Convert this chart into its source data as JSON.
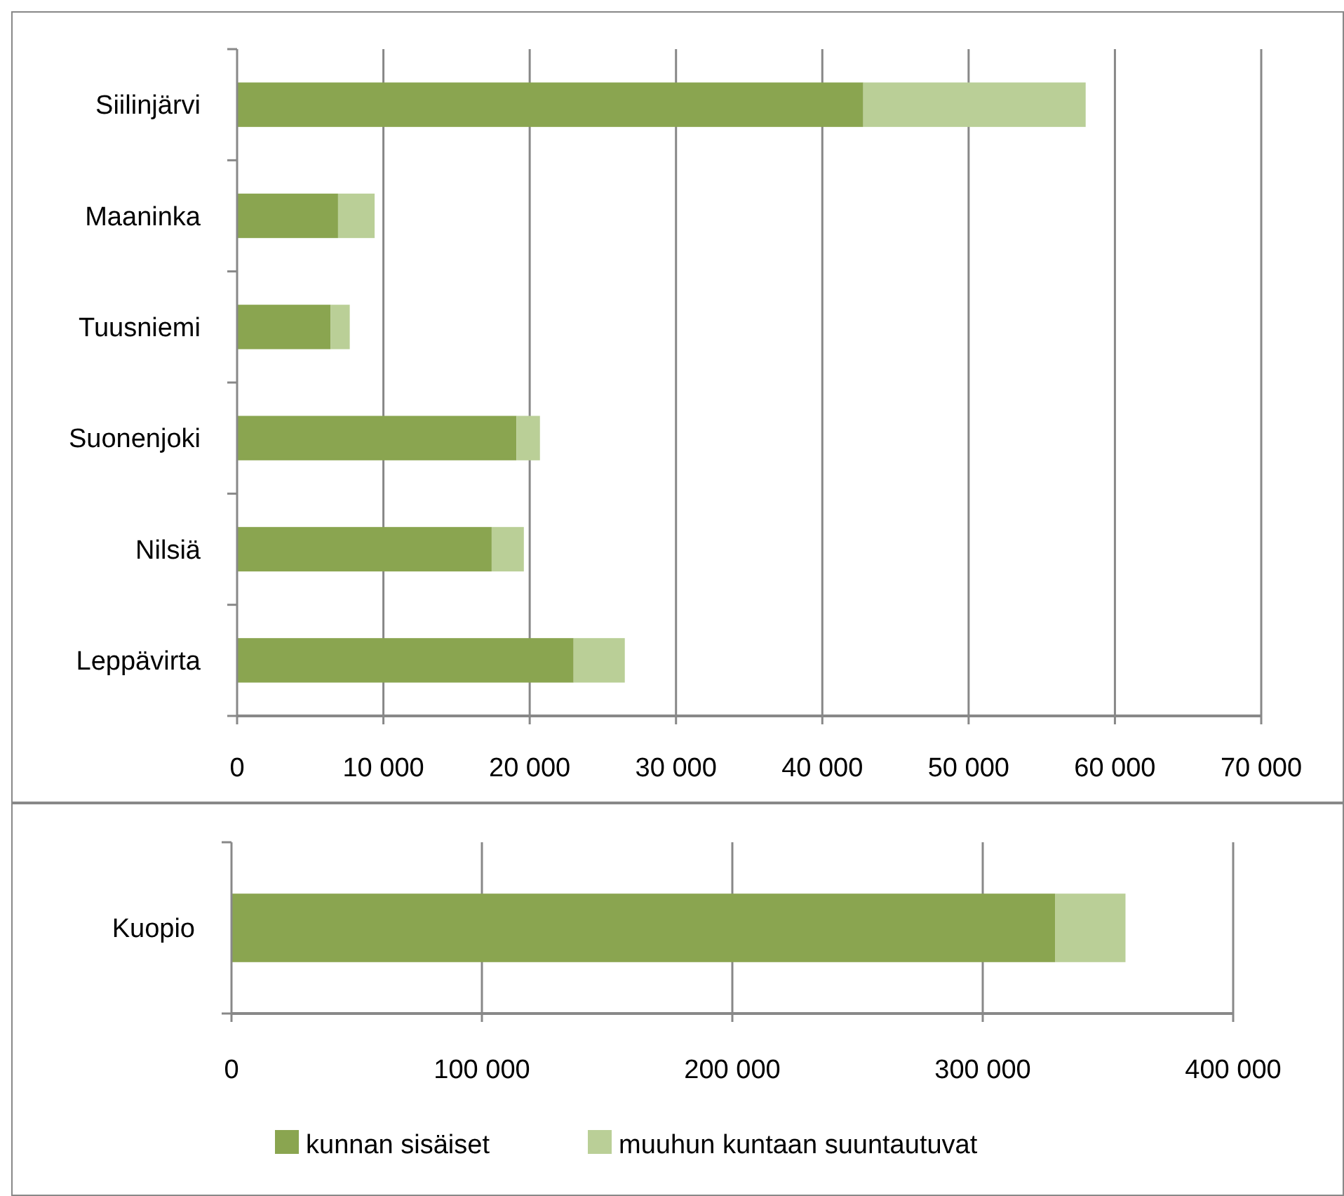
{
  "chart_data": [
    {
      "type": "bar",
      "orientation": "horizontal",
      "stacked": true,
      "grid": "x",
      "legend": false,
      "categories": [
        "Siilinjärvi",
        "Maaninka",
        "Tuusniemi",
        "Suonenjoki",
        "Nilsiä",
        "Leppävirta"
      ],
      "series": [
        {
          "color": "#8aa550",
          "values": [
            42800,
            6900,
            6400,
            19100,
            17400,
            23000
          ]
        },
        {
          "color": "#bacf97",
          "values": [
            15200,
            2500,
            1300,
            1600,
            2200,
            3500
          ]
        }
      ],
      "xlim": [
        0,
        70000
      ],
      "xticks": [
        0,
        {
          "value": 10000,
          "label": "10 000"
        },
        {
          "value": 20000,
          "label": "20 000"
        },
        {
          "value": 30000,
          "label": "30 000"
        },
        {
          "value": 40000,
          "label": "40 000"
        },
        {
          "value": 50000,
          "label": "50 000"
        },
        {
          "value": 60000,
          "label": "60 000"
        },
        {
          "value": 70000,
          "label": "70 000"
        }
      ]
    },
    {
      "type": "bar",
      "orientation": "horizontal",
      "stacked": true,
      "grid": "x",
      "legend": "bottom",
      "categories": [
        "Kuopio"
      ],
      "series": [
        {
          "name": "kunnan sisäiset",
          "color": "#8aa550",
          "values": [
            329000
          ]
        },
        {
          "name": "muuhun kuntaan suuntautuvat",
          "color": "#bacf97",
          "values": [
            28000
          ]
        }
      ],
      "xlim": [
        0,
        400000
      ],
      "xticks": [
        0,
        {
          "value": 100000,
          "label": "100 000"
        },
        {
          "value": 200000,
          "label": "200 000"
        },
        {
          "value": 300000,
          "label": "300 000"
        },
        {
          "value": 400000,
          "label": "400 000"
        }
      ]
    }
  ]
}
